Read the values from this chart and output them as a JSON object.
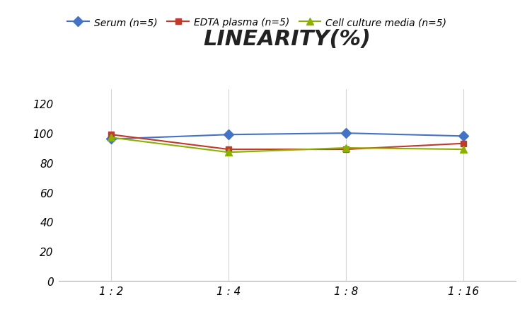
{
  "title": "LINEARITY(%)",
  "x_labels": [
    "1 : 2",
    "1 : 4",
    "1 : 8",
    "1 : 16"
  ],
  "x_positions": [
    0,
    1,
    2,
    3
  ],
  "series": [
    {
      "label": "Serum (n=5)",
      "values": [
        96,
        99,
        100,
        98
      ],
      "color": "#4472C4",
      "marker": "D",
      "marker_size": 7,
      "linewidth": 1.5
    },
    {
      "label": "EDTA plasma (n=5)",
      "values": [
        99,
        89,
        89,
        93
      ],
      "color": "#C0392B",
      "marker": "s",
      "marker_size": 6,
      "linewidth": 1.5
    },
    {
      "label": "Cell culture media (n=5)",
      "values": [
        97,
        87,
        90,
        89
      ],
      "color": "#8DB000",
      "marker": "^",
      "marker_size": 7,
      "linewidth": 1.5
    }
  ],
  "ylim": [
    0,
    130
  ],
  "yticks": [
    0,
    20,
    40,
    60,
    80,
    100,
    120
  ],
  "background_color": "#ffffff",
  "title_fontsize": 22,
  "title_fontstyle": "italic",
  "title_fontweight": "bold",
  "legend_fontsize": 10,
  "tick_fontsize": 11,
  "grid_color": "#d5d5d5",
  "grid_linewidth": 0.8
}
